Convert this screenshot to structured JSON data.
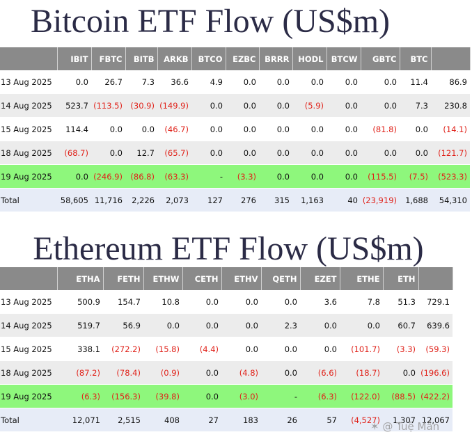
{
  "bitcoin": {
    "title": "Bitcoin ETF Flow (US$m)",
    "headers": [
      "",
      "IBIT",
      "FBTC",
      "BITB",
      "ARKB",
      "BTCO",
      "EZBC",
      "BRRR",
      "HODL",
      "BTCW",
      "GBTC",
      "BTC",
      ""
    ],
    "rows": [
      {
        "style": "plain",
        "cells": [
          "13 Aug 2025",
          "0.0",
          "26.7",
          "7.3",
          "36.6",
          "4.9",
          "0.0",
          "0.0",
          "0.0",
          "0.0",
          "0.0",
          "11.4",
          "86.9"
        ]
      },
      {
        "style": "alt",
        "cells": [
          "14 Aug 2025",
          "523.7",
          "(113.5)",
          "(30.9)",
          "(149.9)",
          "0.0",
          "0.0",
          "0.0",
          "(5.9)",
          "0.0",
          "0.0",
          "7.3",
          "230.8"
        ]
      },
      {
        "style": "plain",
        "cells": [
          "15 Aug 2025",
          "114.4",
          "0.0",
          "0.0",
          "(46.7)",
          "0.0",
          "0.0",
          "0.0",
          "0.0",
          "0.0",
          "(81.8)",
          "0.0",
          "(14.1)"
        ]
      },
      {
        "style": "alt",
        "cells": [
          "18 Aug 2025",
          "(68.7)",
          "0.0",
          "12.7",
          "(65.7)",
          "0.0",
          "0.0",
          "0.0",
          "0.0",
          "0.0",
          "0.0",
          "0.0",
          "(121.7)"
        ]
      },
      {
        "style": "highlight",
        "cells": [
          "19 Aug 2025",
          "0.0",
          "(246.9)",
          "(86.8)",
          "(63.3)",
          "-",
          "(3.3)",
          "0.0",
          "0.0",
          "0.0",
          "(115.5)",
          "(7.5)",
          "(523.3)"
        ]
      },
      {
        "style": "total",
        "cells": [
          "Total",
          "58,605",
          "11,716",
          "2,226",
          "2,073",
          "127",
          "276",
          "315",
          "1,163",
          "40",
          "(23,919)",
          "1,688",
          "54,310"
        ]
      }
    ]
  },
  "ethereum": {
    "title": "Ethereum ETF Flow (US$m)",
    "headers": [
      "",
      "ETHA",
      "FETH",
      "ETHW",
      "CETH",
      "ETHV",
      "QETH",
      "EZET",
      "ETHE",
      "ETH",
      ""
    ],
    "rows": [
      {
        "style": "plain",
        "cells": [
          "13 Aug 2025",
          "500.9",
          "154.7",
          "10.8",
          "0.0",
          "0.0",
          "0.0",
          "3.6",
          "7.8",
          "51.3",
          "729.1"
        ]
      },
      {
        "style": "alt",
        "cells": [
          "14 Aug 2025",
          "519.7",
          "56.9",
          "0.0",
          "0.0",
          "0.0",
          "2.3",
          "0.0",
          "0.0",
          "60.7",
          "639.6"
        ]
      },
      {
        "style": "plain",
        "cells": [
          "15 Aug 2025",
          "338.1",
          "(272.2)",
          "(15.8)",
          "(4.4)",
          "0.0",
          "0.0",
          "0.0",
          "(101.7)",
          "(3.3)",
          "(59.3)"
        ]
      },
      {
        "style": "alt",
        "cells": [
          "18 Aug 2025",
          "(87.2)",
          "(78.4)",
          "(0.9)",
          "0.0",
          "(4.8)",
          "0.0",
          "(6.6)",
          "(18.7)",
          "0.0",
          "(196.6)"
        ]
      },
      {
        "style": "highlight",
        "cells": [
          "19 Aug 2025",
          "(6.3)",
          "(156.3)",
          "(39.8)",
          "0.0",
          "(3.0)",
          "-",
          "(6.3)",
          "(122.0)",
          "(88.5)",
          "(422.2)"
        ]
      },
      {
        "style": "total",
        "cells": [
          "Total",
          "12,071",
          "2,515",
          "408",
          "27",
          "183",
          "26",
          "57",
          "(4,527)",
          "1,307",
          "12,067"
        ]
      }
    ]
  },
  "colors": {
    "header_bg": "#8a8a8a",
    "highlight_row": "#8ef77c",
    "total_row": "#e7ecf7",
    "negative": "#e0221a",
    "title": "#2b2b46"
  },
  "watermark": {
    "text": "@ Tuệ Mẫn",
    "icon": "watermark-logo-icon"
  }
}
